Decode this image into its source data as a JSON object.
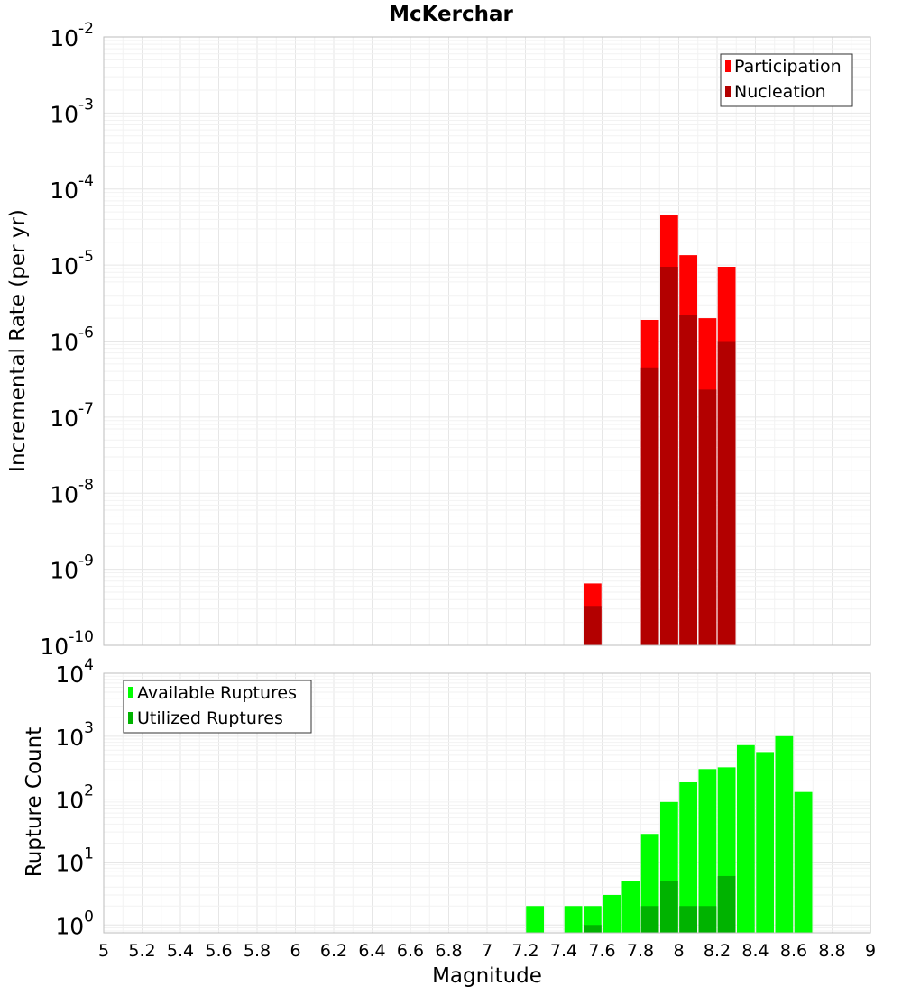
{
  "title": "McKerchar",
  "chart_data": [
    {
      "type": "bar",
      "ylabel": "Incremental Rate (per yr)",
      "xlim": [
        5,
        9
      ],
      "ylim": [
        1e-10,
        0.01
      ],
      "yscale": "log",
      "ytick_exponents": [
        "-10",
        "-9",
        "-8",
        "-7",
        "-6",
        "-5",
        "-4",
        "-3",
        "-2"
      ],
      "ytick_base": "10",
      "grid": true,
      "legend_position": "top-right",
      "x": [
        7.55,
        7.85,
        7.95,
        8.05,
        8.15,
        8.25
      ],
      "series": [
        {
          "name": "Participation",
          "color": "#ff0000",
          "values": [
            6.5e-10,
            1.9e-06,
            4.5e-05,
            1.35e-05,
            2e-06,
            9.5e-06
          ]
        },
        {
          "name": "Nucleation",
          "color": "#b30000",
          "values": [
            3.3e-10,
            4.5e-07,
            9.5e-06,
            2.2e-06,
            2.3e-07,
            1e-06
          ]
        }
      ]
    },
    {
      "type": "bar",
      "xlabel": "Magnitude",
      "ylabel": "Rupture Count",
      "xlim": [
        5,
        9
      ],
      "ylim": [
        0.75,
        10000
      ],
      "yscale": "log",
      "ytick_values": [
        1,
        10,
        100,
        1000,
        10000
      ],
      "ytick_exponents": [
        "0",
        "1",
        "2",
        "3",
        "4"
      ],
      "ytick_base": "10",
      "xticks": [
        "5",
        "5.2",
        "5.4",
        "5.6",
        "5.8",
        "6",
        "6.2",
        "6.4",
        "6.6",
        "6.8",
        "7",
        "7.2",
        "7.4",
        "7.6",
        "7.8",
        "8",
        "8.2",
        "8.4",
        "8.6",
        "8.8",
        "9"
      ],
      "grid": true,
      "legend_position": "top-left",
      "x": [
        7.25,
        7.45,
        7.55,
        7.65,
        7.75,
        7.85,
        7.95,
        8.05,
        8.15,
        8.25,
        8.35,
        8.45,
        8.55,
        8.65
      ],
      "series": [
        {
          "name": "Available Ruptures",
          "color": "#00ff00",
          "values": [
            2,
            2,
            2,
            3,
            5,
            28,
            90,
            185,
            300,
            320,
            720,
            560,
            1000,
            130
          ]
        },
        {
          "name": "Utilized Ruptures",
          "color": "#00b300",
          "values": [
            0,
            0,
            1,
            0,
            0,
            2,
            5,
            2,
            2,
            6,
            0,
            0,
            0,
            0
          ]
        }
      ]
    }
  ]
}
